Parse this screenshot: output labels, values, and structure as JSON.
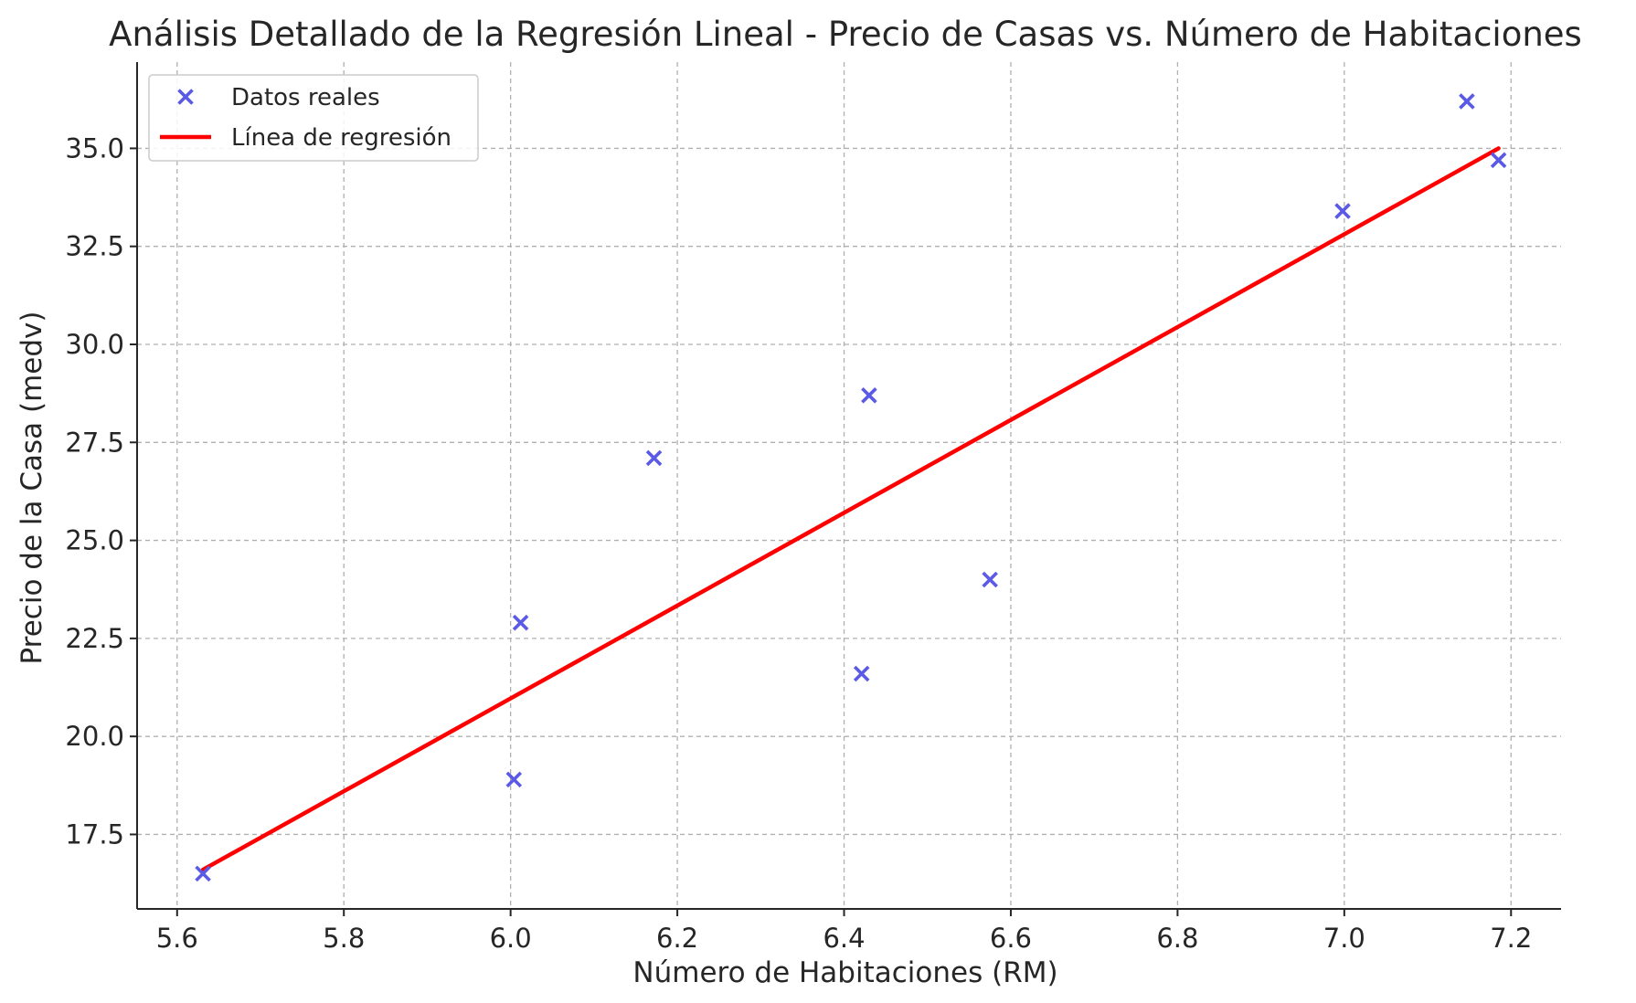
{
  "chart_data": {
    "type": "scatter",
    "title": "Análisis Detallado de la Regresión Lineal - Precio de Casas vs. Número de Habitaciones",
    "xlabel": "Número de Habitaciones (RM)",
    "ylabel": "Precio de la Casa (medv)",
    "xlim": [
      5.552,
      7.26
    ],
    "ylim": [
      15.6,
      37.2
    ],
    "xticks": [
      5.6,
      5.8,
      6.0,
      6.2,
      6.4,
      6.6,
      6.8,
      7.0,
      7.2
    ],
    "xtick_labels": [
      "5.6",
      "5.8",
      "6.0",
      "6.2",
      "6.4",
      "6.6",
      "6.8",
      "7.0",
      "7.2"
    ],
    "yticks": [
      17.5,
      20.0,
      22.5,
      25.0,
      27.5,
      30.0,
      32.5,
      35.0
    ],
    "ytick_labels": [
      "17.5",
      "20.0",
      "22.5",
      "25.0",
      "27.5",
      "30.0",
      "32.5",
      "35.0"
    ],
    "grid": true,
    "legend_position": "top-left",
    "series": [
      {
        "name": "Datos reales",
        "kind": "scatter",
        "marker": "x",
        "color": "#5a5ae6",
        "x": [
          5.631,
          6.004,
          6.012,
          6.172,
          6.421,
          6.43,
          6.575,
          6.998,
          7.147,
          7.185
        ],
        "y": [
          16.5,
          18.9,
          22.9,
          27.1,
          21.6,
          28.7,
          24.0,
          33.4,
          36.2,
          34.7
        ]
      },
      {
        "name": "Línea de regresión",
        "kind": "line",
        "color": "#ff0000",
        "x": [
          5.631,
          7.185
        ],
        "y": [
          16.6,
          35.0
        ]
      }
    ]
  }
}
